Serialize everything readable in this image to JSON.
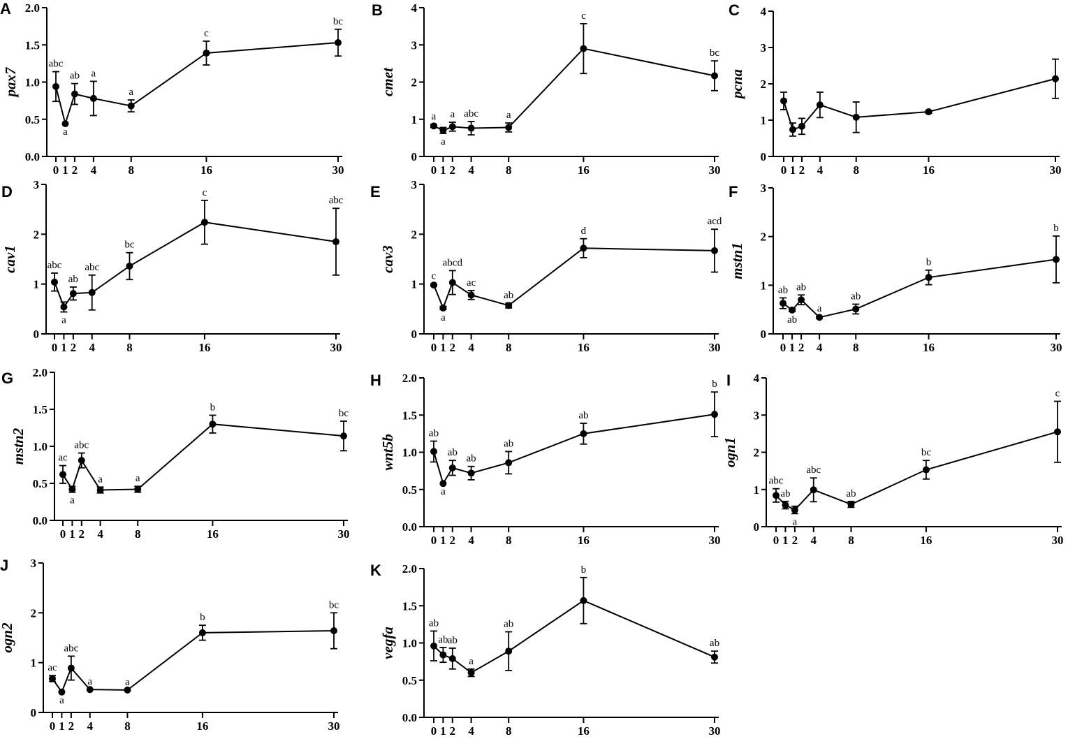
{
  "chart_data": [
    {
      "type": "line",
      "panel": "A",
      "ylabel": "pax7",
      "x": [
        0,
        1,
        2,
        4,
        8,
        16,
        30
      ],
      "ylim": [
        0,
        2.0
      ],
      "yticks": [
        0,
        0.5,
        1.0,
        1.5,
        2.0
      ],
      "ytick_labels": [
        "0.0",
        "0.5",
        "1.0",
        "1.5",
        "2.0"
      ],
      "values": [
        0.94,
        0.44,
        0.84,
        0.78,
        0.68,
        1.39,
        1.53
      ],
      "errors": [
        0.2,
        0,
        0.14,
        0.23,
        0.08,
        0.16,
        0.18
      ],
      "labels": [
        "abc",
        "a",
        "ab",
        "a",
        "a",
        "c",
        "bc"
      ],
      "label_below": [
        false,
        true,
        false,
        false,
        false,
        false,
        false
      ]
    },
    {
      "type": "line",
      "panel": "B",
      "ylabel": "cmet",
      "x": [
        0,
        1,
        2,
        4,
        8,
        16,
        30
      ],
      "ylim": [
        0,
        4
      ],
      "yticks": [
        0,
        1,
        2,
        3,
        4
      ],
      "ytick_labels": [
        "0",
        "1",
        "2",
        "3",
        "4"
      ],
      "values": [
        0.82,
        0.7,
        0.8,
        0.76,
        0.78,
        2.9,
        2.17
      ],
      "errors": [
        0.04,
        0.08,
        0.12,
        0.18,
        0.12,
        0.67,
        0.4
      ],
      "labels": [
        "a",
        "a",
        "a",
        "abc",
        "a",
        "c",
        "bc"
      ],
      "label_below": [
        false,
        true,
        false,
        false,
        false,
        false,
        false
      ]
    },
    {
      "type": "line",
      "panel": "C",
      "ylabel": "pcna",
      "x": [
        0,
        1,
        2,
        4,
        8,
        16,
        30
      ],
      "ylim": [
        0,
        4
      ],
      "yticks": [
        0,
        1,
        2,
        3,
        4
      ],
      "ytick_labels": [
        "0",
        "1",
        "2",
        "3",
        "4"
      ],
      "values": [
        1.53,
        0.74,
        0.83,
        1.42,
        1.08,
        1.23,
        2.14
      ],
      "errors": [
        0.24,
        0.18,
        0.22,
        0.35,
        0.42,
        0.04,
        0.54
      ],
      "labels": [
        "",
        "",
        "",
        "",
        "",
        "",
        ""
      ],
      "label_below": [
        false,
        false,
        false,
        false,
        false,
        false,
        false
      ]
    },
    {
      "type": "line",
      "panel": "D",
      "ylabel": "cav1",
      "x": [
        0,
        1,
        2,
        4,
        8,
        16,
        30
      ],
      "ylim": [
        0,
        3
      ],
      "yticks": [
        0,
        1,
        2,
        3
      ],
      "ytick_labels": [
        "0",
        "1",
        "2",
        "3"
      ],
      "values": [
        1.04,
        0.54,
        0.81,
        0.83,
        1.36,
        2.24,
        1.85
      ],
      "errors": [
        0.18,
        0.1,
        0.13,
        0.35,
        0.27,
        0.44,
        0.67
      ],
      "labels": [
        "abc",
        "a",
        "ab",
        "abc",
        "bc",
        "c",
        "abc"
      ],
      "label_below": [
        false,
        true,
        false,
        false,
        false,
        false,
        false
      ]
    },
    {
      "type": "line",
      "panel": "E",
      "ylabel": "cav3",
      "x": [
        0,
        1,
        2,
        4,
        8,
        16,
        30
      ],
      "ylim": [
        0,
        3
      ],
      "yticks": [
        0,
        1,
        2,
        3
      ],
      "ytick_labels": [
        "0",
        "1",
        "2",
        "3"
      ],
      "values": [
        0.98,
        0.52,
        1.03,
        0.78,
        0.57,
        1.72,
        1.67
      ],
      "errors": [
        0.02,
        0.03,
        0.24,
        0.09,
        0.05,
        0.19,
        0.43
      ],
      "labels": [
        "c",
        "a",
        "abcd",
        "ac",
        "ab",
        "d",
        "acd"
      ],
      "label_below": [
        false,
        true,
        false,
        false,
        false,
        false,
        false
      ]
    },
    {
      "type": "line",
      "panel": "F",
      "ylabel": "mstn1",
      "x": [
        0,
        1,
        2,
        4,
        8,
        16,
        30
      ],
      "ylim": [
        0,
        3
      ],
      "yticks": [
        0,
        1,
        2,
        3
      ],
      "ytick_labels": [
        "0",
        "1",
        "2",
        "3"
      ],
      "values": [
        0.63,
        0.49,
        0.7,
        0.34,
        0.51,
        1.16,
        1.53
      ],
      "errors": [
        0.11,
        0.03,
        0.1,
        0.02,
        0.1,
        0.15,
        0.48
      ],
      "labels": [
        "ab",
        "ab",
        "ab",
        "a",
        "ab",
        "b",
        "b"
      ],
      "label_below": [
        false,
        true,
        false,
        false,
        false,
        false,
        false
      ]
    },
    {
      "type": "line",
      "panel": "G",
      "ylabel": "mstn2",
      "x": [
        0,
        1,
        2,
        4,
        8,
        16,
        30
      ],
      "ylim": [
        0,
        2.0
      ],
      "yticks": [
        0,
        0.5,
        1.0,
        1.5,
        2.0
      ],
      "ytick_labels": [
        "0.0",
        "0.5",
        "1.0",
        "1.5",
        "2.0"
      ],
      "values": [
        0.62,
        0.42,
        0.81,
        0.41,
        0.42,
        1.3,
        1.14
      ],
      "errors": [
        0.12,
        0.04,
        0.1,
        0.04,
        0.04,
        0.12,
        0.2
      ],
      "labels": [
        "ac",
        "a",
        "abc",
        "a",
        "a",
        "b",
        "bc"
      ],
      "label_below": [
        false,
        true,
        false,
        false,
        false,
        false,
        false
      ]
    },
    {
      "type": "line",
      "panel": "H",
      "ylabel": "wnt5b",
      "x": [
        0,
        1,
        2,
        4,
        8,
        16,
        30
      ],
      "ylim": [
        0,
        2.0
      ],
      "yticks": [
        0,
        0.5,
        1.0,
        1.5,
        2.0
      ],
      "ytick_labels": [
        "0.0",
        "0.5",
        "1.0",
        "1.5",
        "2.0"
      ],
      "values": [
        1.01,
        0.58,
        0.79,
        0.72,
        0.86,
        1.25,
        1.51
      ],
      "errors": [
        0.14,
        0,
        0.1,
        0.09,
        0.15,
        0.14,
        0.3
      ],
      "labels": [
        "ab",
        "a",
        "ab",
        "ab",
        "ab",
        "ab",
        "b"
      ],
      "label_below": [
        false,
        true,
        false,
        false,
        false,
        false,
        false
      ]
    },
    {
      "type": "line",
      "panel": "I",
      "ylabel": "ogn1",
      "x": [
        0,
        1,
        2,
        4,
        8,
        16,
        30
      ],
      "ylim": [
        0,
        4
      ],
      "yticks": [
        0,
        1,
        2,
        3,
        4
      ],
      "ytick_labels": [
        "0",
        "1",
        "2",
        "3",
        "4"
      ],
      "values": [
        0.84,
        0.58,
        0.45,
        0.99,
        0.6,
        1.53,
        2.55
      ],
      "errors": [
        0.18,
        0.1,
        0.1,
        0.32,
        0.08,
        0.25,
        0.82
      ],
      "labels": [
        "abc",
        "ab",
        "a",
        "abc",
        "ab",
        "bc",
        "c"
      ],
      "label_below": [
        false,
        false,
        true,
        false,
        false,
        false,
        false
      ]
    },
    {
      "type": "line",
      "panel": "J",
      "ylabel": "ogn2",
      "x": [
        0,
        1,
        2,
        4,
        8,
        16,
        30
      ],
      "ylim": [
        0,
        3
      ],
      "yticks": [
        0,
        1,
        2,
        3
      ],
      "ytick_labels": [
        "0",
        "1",
        "2",
        "3"
      ],
      "values": [
        0.68,
        0.41,
        0.89,
        0.46,
        0.45,
        1.6,
        1.64
      ],
      "errors": [
        0.06,
        0,
        0.24,
        0,
        0,
        0.15,
        0.36
      ],
      "labels": [
        "ac",
        "a",
        "abc",
        "a",
        "a",
        "b",
        "bc"
      ],
      "label_below": [
        false,
        true,
        false,
        false,
        false,
        false,
        false
      ]
    },
    {
      "type": "line",
      "panel": "K",
      "ylabel": "vegfa",
      "x": [
        0,
        1,
        2,
        4,
        8,
        16,
        30
      ],
      "ylim": [
        0,
        2.0
      ],
      "yticks": [
        0,
        0.5,
        1.0,
        1.5,
        2.0
      ],
      "ytick_labels": [
        "0.0",
        "0.5",
        "1.0",
        "1.5",
        "2.0"
      ],
      "values": [
        0.96,
        0.84,
        0.79,
        0.6,
        0.89,
        1.57,
        0.81
      ],
      "errors": [
        0.2,
        0.1,
        0.14,
        0.05,
        0.26,
        0.31,
        0.08
      ],
      "labels": [
        "ab",
        "ab",
        "ab",
        "a",
        "ab",
        "b",
        "ab"
      ],
      "label_below": [
        false,
        false,
        false,
        false,
        false,
        false,
        false
      ]
    }
  ]
}
